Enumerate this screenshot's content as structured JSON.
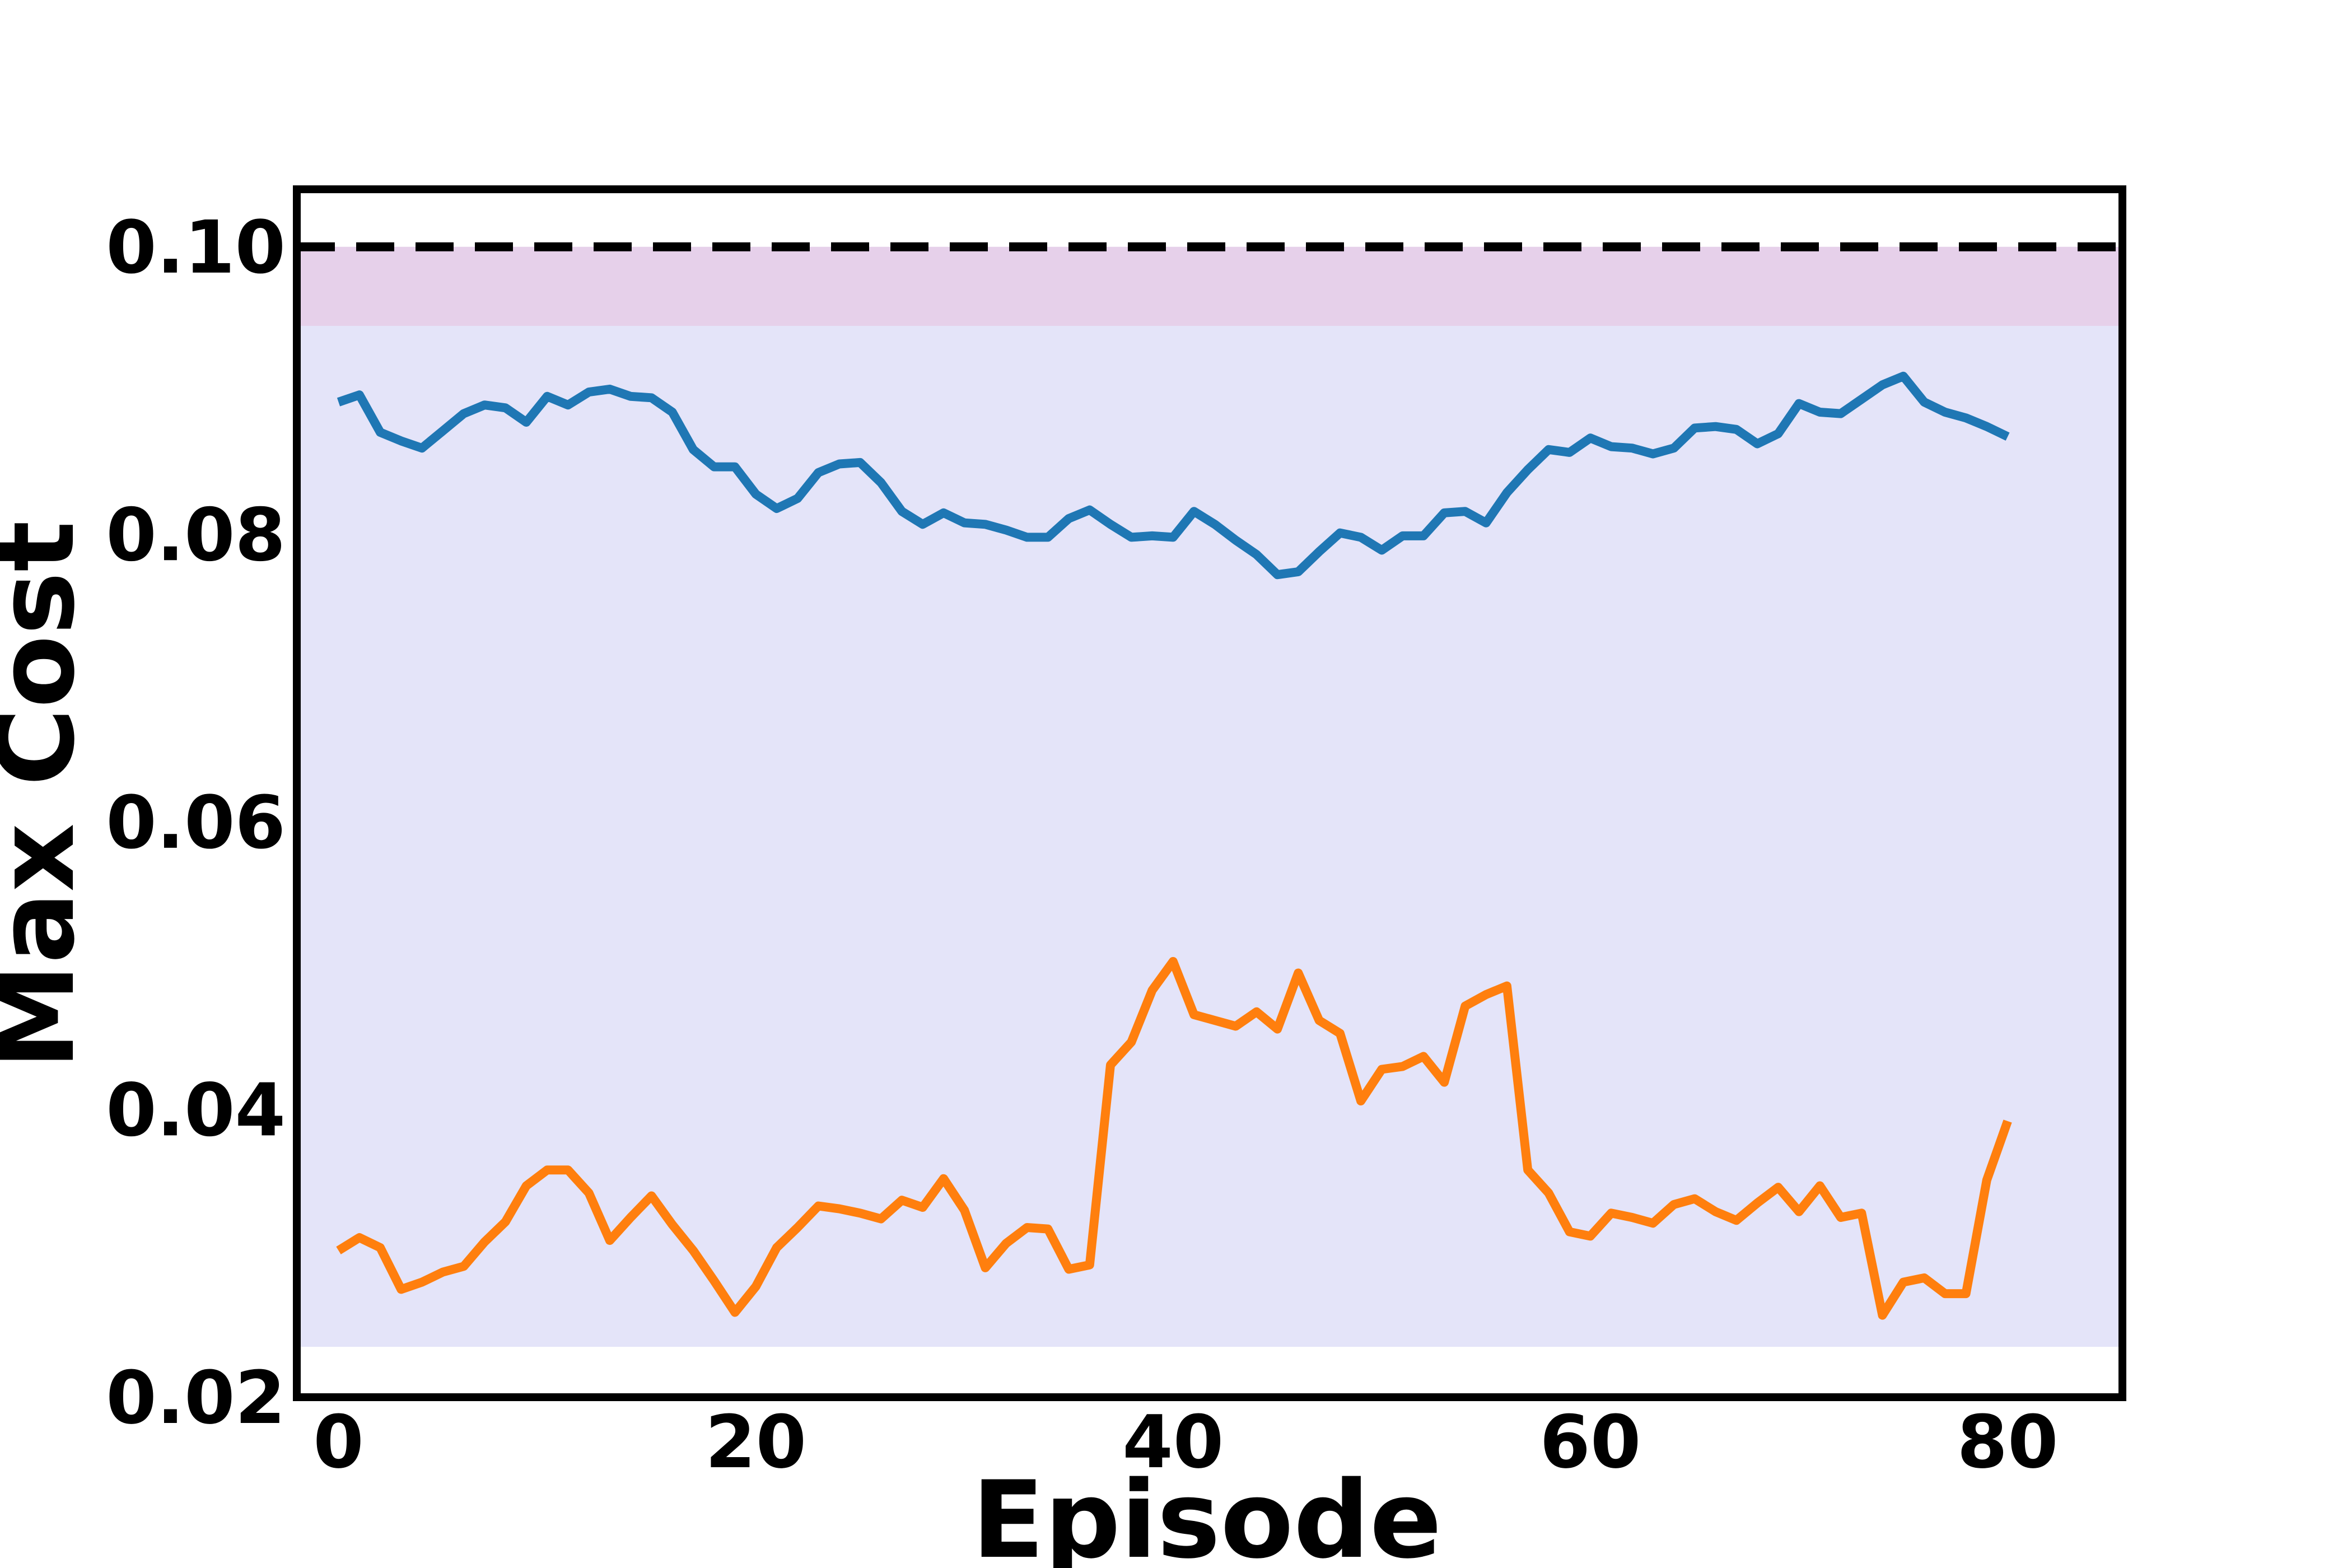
{
  "chart_data": {
    "type": "line",
    "title": "",
    "xlabel": "Episode",
    "ylabel": "Max Cost",
    "xlim": [
      -2,
      85.5
    ],
    "ylim": [
      0.02,
      0.104
    ],
    "xticks": [
      0,
      20,
      40,
      60,
      80
    ],
    "yticks": [
      0.02,
      0.04,
      0.06,
      0.08,
      0.1
    ],
    "xtick_labels": [
      "0",
      "20",
      "40",
      "60",
      "80"
    ],
    "ytick_labels": [
      "0.02",
      "0.04",
      "0.06",
      "0.08",
      "0.10"
    ],
    "grid": false,
    "legend": "none",
    "threshold": {
      "value": 0.1,
      "style": "dashed",
      "color": "#000000"
    },
    "bands": [
      {
        "y0": 0.0235,
        "y1": 0.0945,
        "color": "#e4e4f9"
      },
      {
        "y0": 0.0945,
        "y1": 0.1,
        "color": "#e6d0ea"
      }
    ],
    "x": [
      0,
      1,
      2,
      3,
      4,
      5,
      6,
      7,
      8,
      9,
      10,
      11,
      12,
      13,
      14,
      15,
      16,
      17,
      18,
      19,
      20,
      21,
      22,
      23,
      24,
      25,
      26,
      27,
      28,
      29,
      30,
      31,
      32,
      33,
      34,
      35,
      36,
      37,
      38,
      39,
      40,
      41,
      42,
      43,
      44,
      45,
      46,
      47,
      48,
      49,
      50,
      51,
      52,
      53,
      54,
      55,
      56,
      57,
      58,
      59,
      60,
      61,
      62,
      63,
      64,
      65,
      66,
      67,
      68,
      69,
      70,
      71,
      72,
      73,
      74,
      75,
      76,
      77,
      78,
      79,
      80
    ],
    "series": [
      {
        "color": "#1f77b4",
        "values": [
          0.0892,
          0.0897,
          0.0871,
          0.0865,
          0.086,
          0.0872,
          0.0884,
          0.089,
          0.0888,
          0.0878,
          0.0896,
          0.089,
          0.0899,
          0.0901,
          0.0896,
          0.0895,
          0.0885,
          0.0859,
          0.0847,
          0.0847,
          0.0828,
          0.0818,
          0.0825,
          0.0843,
          0.0849,
          0.085,
          0.0836,
          0.0816,
          0.0807,
          0.0815,
          0.0808,
          0.0807,
          0.0803,
          0.0798,
          0.0798,
          0.0811,
          0.0817,
          0.0807,
          0.0798,
          0.0799,
          0.0798,
          0.0816,
          0.0807,
          0.0796,
          0.0786,
          0.0772,
          0.0774,
          0.0788,
          0.0801,
          0.0798,
          0.0789,
          0.0799,
          0.0799,
          0.0815,
          0.0816,
          0.0808,
          0.0829,
          0.0845,
          0.0859,
          0.0857,
          0.0867,
          0.0861,
          0.086,
          0.0856,
          0.086,
          0.0874,
          0.0875,
          0.0873,
          0.0863,
          0.087,
          0.0891,
          0.0885,
          0.0884,
          0.0894,
          0.0904,
          0.091,
          0.0892,
          0.0885,
          0.0881,
          0.0875,
          0.0868
        ]
      },
      {
        "color": "#ff7f0e",
        "values": [
          0.0302,
          0.0311,
          0.0304,
          0.0275,
          0.028,
          0.0287,
          0.0291,
          0.0308,
          0.0322,
          0.0347,
          0.0358,
          0.0358,
          0.0342,
          0.0309,
          0.0325,
          0.034,
          0.032,
          0.0302,
          0.0281,
          0.0259,
          0.0277,
          0.0304,
          0.0318,
          0.0333,
          0.0331,
          0.0328,
          0.0324,
          0.0337,
          0.0332,
          0.0352,
          0.033,
          0.029,
          0.0307,
          0.0318,
          0.0317,
          0.0289,
          0.0292,
          0.0431,
          0.0447,
          0.0483,
          0.0503,
          0.0466,
          0.0462,
          0.0458,
          0.0468,
          0.0456,
          0.0495,
          0.0462,
          0.0453,
          0.0406,
          0.0428,
          0.043,
          0.0437,
          0.0419,
          0.0472,
          0.048,
          0.0486,
          0.0358,
          0.0342,
          0.0315,
          0.0312,
          0.0328,
          0.0325,
          0.0321,
          0.0334,
          0.0338,
          0.0329,
          0.0323,
          0.0335,
          0.0346,
          0.0329,
          0.0347,
          0.0325,
          0.0328,
          0.0257,
          0.028,
          0.0283,
          0.0272,
          0.0272,
          0.0351,
          0.0392
        ]
      }
    ]
  }
}
